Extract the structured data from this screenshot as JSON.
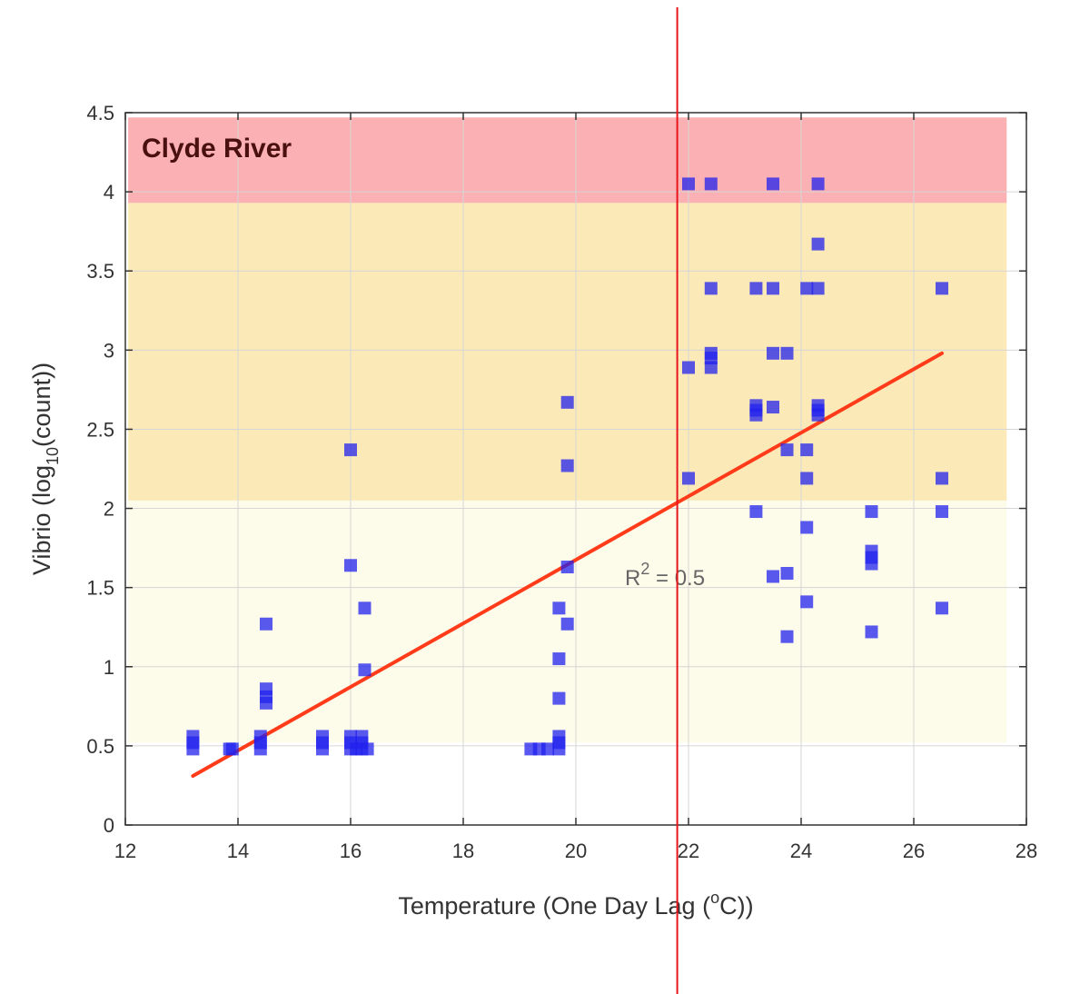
{
  "chart_data": {
    "type": "scatter",
    "title": "Clyde River",
    "xlabel": {
      "prefix": "Temperature (One Day Lag (",
      "sup": "o",
      "suffix": "C))"
    },
    "ylabel": {
      "prefix": "Vibrio (log",
      "sub": "10",
      "suffix": "(count))"
    },
    "xlim": [
      12,
      28
    ],
    "ylim": [
      0,
      4.5
    ],
    "xticks": [
      "12",
      "14",
      "16",
      "18",
      "20",
      "22",
      "24",
      "26",
      "28"
    ],
    "yticks": [
      "0",
      "0.5",
      "1",
      "1.5",
      "2",
      "2.5",
      "3",
      "3.5",
      "4",
      "4.5"
    ],
    "grid": true,
    "bands": [
      {
        "y_from": 0.52,
        "y_to": 2.05,
        "color": "#fdfcea"
      },
      {
        "y_from": 2.05,
        "y_to": 3.93,
        "color": "#fbe9b8"
      },
      {
        "y_from": 3.93,
        "y_to": 4.47,
        "color": "#fbb1b3"
      }
    ],
    "points": [
      [
        13.2,
        0.48
      ],
      [
        13.2,
        0.52
      ],
      [
        13.2,
        0.56
      ],
      [
        13.9,
        0.48
      ],
      [
        13.85,
        0.48
      ],
      [
        14.4,
        0.48
      ],
      [
        14.4,
        0.52
      ],
      [
        14.4,
        0.56
      ],
      [
        14.5,
        1.27
      ],
      [
        14.5,
        0.86
      ],
      [
        14.5,
        0.81
      ],
      [
        14.5,
        0.77
      ],
      [
        15.5,
        0.48
      ],
      [
        15.5,
        0.52
      ],
      [
        15.5,
        0.56
      ],
      [
        16.0,
        2.37
      ],
      [
        16.0,
        1.64
      ],
      [
        16.0,
        0.48
      ],
      [
        16.0,
        0.52
      ],
      [
        16.0,
        0.56
      ],
      [
        16.1,
        0.48
      ],
      [
        16.2,
        0.48
      ],
      [
        16.2,
        0.52
      ],
      [
        16.2,
        0.56
      ],
      [
        16.3,
        0.48
      ],
      [
        16.25,
        1.37
      ],
      [
        16.25,
        0.98
      ],
      [
        19.2,
        0.48
      ],
      [
        19.35,
        0.48
      ],
      [
        19.5,
        0.48
      ],
      [
        19.7,
        1.37
      ],
      [
        19.7,
        1.05
      ],
      [
        19.7,
        0.8
      ],
      [
        19.7,
        0.56
      ],
      [
        19.7,
        0.52
      ],
      [
        19.7,
        0.48
      ],
      [
        19.85,
        2.67
      ],
      [
        19.85,
        2.27
      ],
      [
        19.85,
        1.63
      ],
      [
        19.85,
        1.27
      ],
      [
        22.0,
        4.05
      ],
      [
        22.0,
        2.89
      ],
      [
        22.0,
        2.19
      ],
      [
        22.4,
        4.05
      ],
      [
        22.4,
        3.39
      ],
      [
        22.4,
        2.98
      ],
      [
        22.4,
        2.95
      ],
      [
        22.4,
        2.89
      ],
      [
        23.2,
        3.39
      ],
      [
        23.2,
        2.65
      ],
      [
        23.2,
        2.62
      ],
      [
        23.2,
        2.59
      ],
      [
        23.2,
        1.98
      ],
      [
        23.5,
        4.05
      ],
      [
        23.5,
        3.39
      ],
      [
        23.5,
        2.98
      ],
      [
        23.5,
        2.64
      ],
      [
        23.5,
        1.57
      ],
      [
        23.75,
        2.98
      ],
      [
        23.75,
        2.37
      ],
      [
        23.75,
        1.59
      ],
      [
        23.75,
        1.19
      ],
      [
        24.1,
        3.39
      ],
      [
        24.1,
        2.37
      ],
      [
        24.1,
        2.19
      ],
      [
        24.1,
        1.88
      ],
      [
        24.1,
        1.41
      ],
      [
        24.3,
        4.05
      ],
      [
        24.3,
        3.67
      ],
      [
        24.3,
        3.39
      ],
      [
        24.3,
        2.65
      ],
      [
        24.3,
        2.62
      ],
      [
        24.3,
        2.59
      ],
      [
        25.25,
        1.98
      ],
      [
        25.25,
        1.73
      ],
      [
        25.25,
        1.69
      ],
      [
        25.25,
        1.65
      ],
      [
        25.25,
        1.22
      ],
      [
        26.5,
        3.39
      ],
      [
        26.5,
        2.19
      ],
      [
        26.5,
        1.98
      ],
      [
        26.5,
        1.37
      ]
    ],
    "point_color": "#2222ee",
    "trend_line": {
      "x": [
        13.2,
        26.5
      ],
      "y": [
        0.31,
        2.98
      ],
      "color": "#ff3b1a"
    },
    "annotation": {
      "prefix": "R",
      "sup": "2",
      "suffix": " = 0.5"
    },
    "marker_line": {
      "x": 21.8,
      "color": "#e8141c"
    }
  }
}
